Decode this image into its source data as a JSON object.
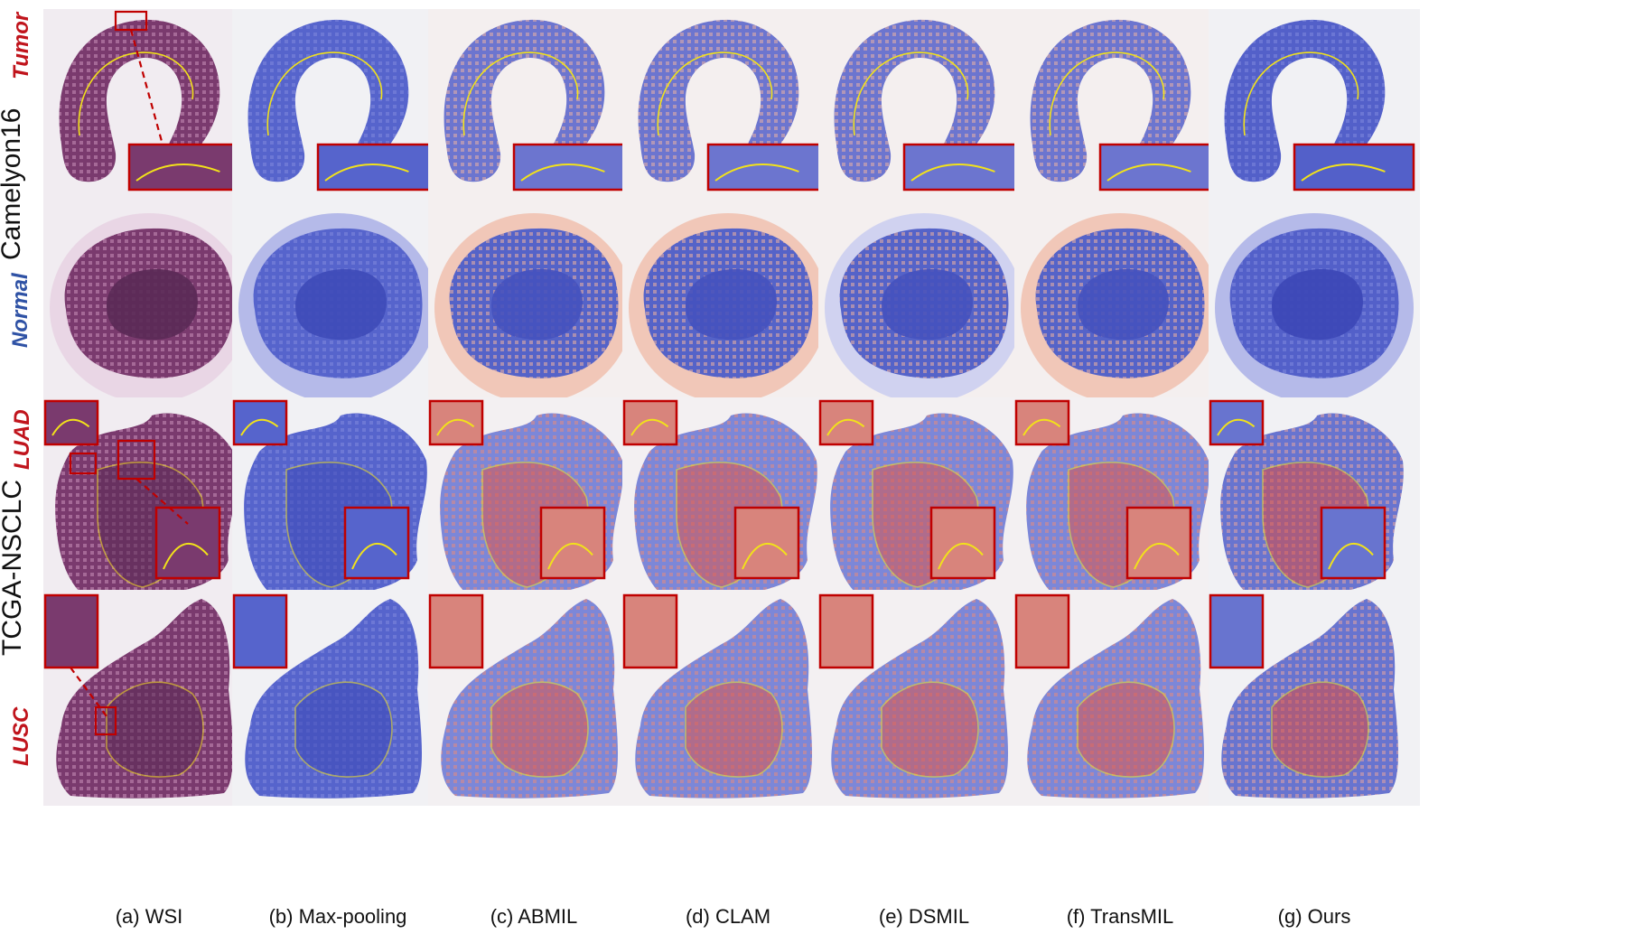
{
  "side_labels": {
    "camelyon": {
      "tumor": "Tumor",
      "dataset": "Camelyon16",
      "normal": "Normal"
    },
    "nsclc": {
      "luad": "LUAD",
      "dataset": "TCGA-NSCLC",
      "lusc": "LUSC"
    }
  },
  "colors": {
    "tumor_label": "#c0141c",
    "normal_label": "#2f52a5",
    "luad_label": "#c0141c",
    "lusc_label": "#c0141c",
    "inset_border": "#c00000",
    "annotation_line": "#f2e21a",
    "he_stain": "#7a3a6e",
    "heat_low": "#4b57c8",
    "heat_high": "#e2554f"
  },
  "columns": [
    {
      "id": "wsi",
      "caption": "(a) WSI"
    },
    {
      "id": "maxpool",
      "caption": "(b) Max-pooling"
    },
    {
      "id": "abmil",
      "caption": "(c) ABMIL"
    },
    {
      "id": "clam",
      "caption": "(d) CLAM"
    },
    {
      "id": "dsmil",
      "caption": "(e) DSMIL"
    },
    {
      "id": "transmil",
      "caption": "(f) TransMIL"
    },
    {
      "id": "ours",
      "caption": "(g) Ours"
    }
  ],
  "rows": [
    {
      "id": "camelyon-tumor",
      "dataset": "Camelyon16",
      "class": "Tumor"
    },
    {
      "id": "camelyon-normal",
      "dataset": "Camelyon16",
      "class": "Normal"
    },
    {
      "id": "nsclc-luad",
      "dataset": "TCGA-NSCLC",
      "class": "LUAD"
    },
    {
      "id": "nsclc-lusc",
      "dataset": "TCGA-NSCLC",
      "class": "LUSC"
    }
  ]
}
